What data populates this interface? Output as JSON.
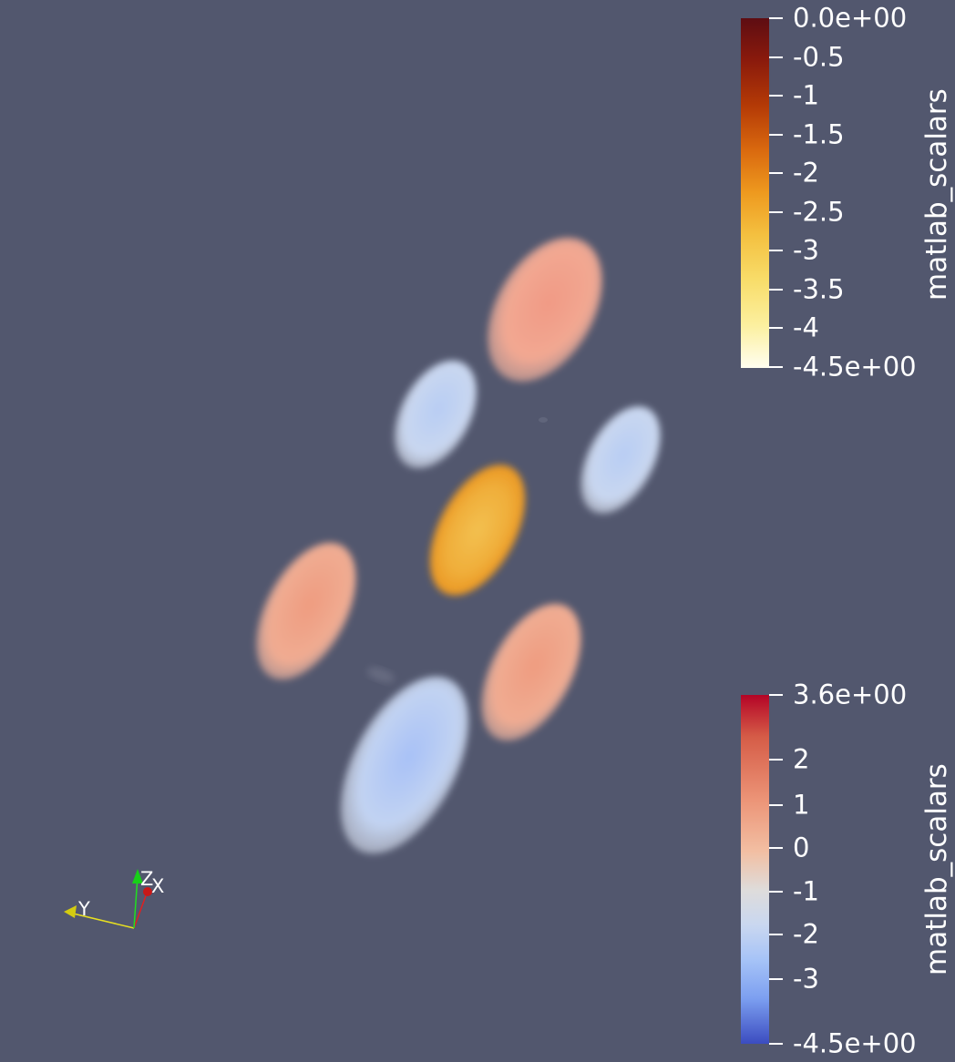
{
  "colorbar_top": {
    "title": "matlab_scalars",
    "labels": [
      "0.0e+00",
      "-0.5",
      "-1",
      "-1.5",
      "-2",
      "-2.5",
      "-3",
      "-3.5",
      "-4",
      "-4.5e+00"
    ]
  },
  "colorbar_bottom": {
    "title": "matlab_scalars",
    "labels": [
      "3.6e+00",
      "2",
      "1",
      "0",
      "-1",
      "-2",
      "-3",
      "-4.5e+00"
    ]
  },
  "axes": {
    "x": "X",
    "y": "Y",
    "z": "Z"
  },
  "colors": {
    "background": "#52576e",
    "axis_x": "#e02020",
    "axis_y": "#e8e020",
    "axis_z": "#20e020"
  }
}
